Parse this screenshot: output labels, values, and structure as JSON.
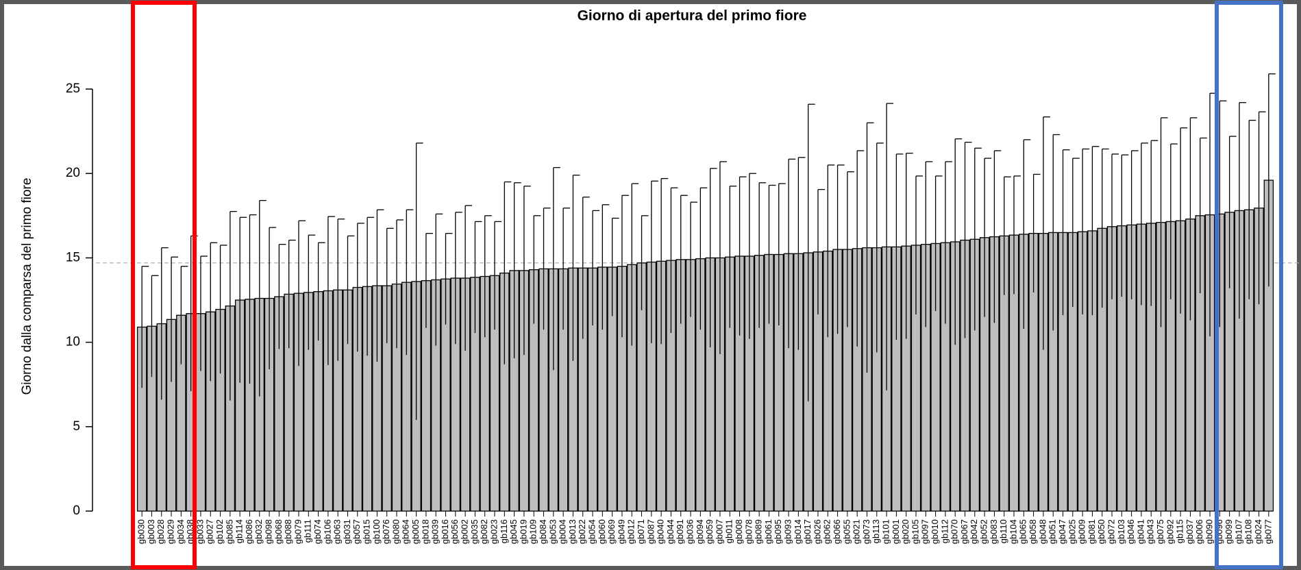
{
  "chart_data": {
    "type": "bar",
    "title": "Giorno di apertura del primo fiore",
    "y_label": "Giorno dalla comparsa del primo fiore",
    "categories": [
      "gb030",
      "gb003",
      "gb028",
      "gb029",
      "gb034",
      "gb038",
      "gb033",
      "gb027",
      "gb102",
      "gb085",
      "gb114",
      "gb086",
      "gb032",
      "gb098",
      "gb068",
      "gb088",
      "gb079",
      "gb111",
      "gb074",
      "gb106",
      "gb063",
      "gb031",
      "gb057",
      "gb015",
      "gb100",
      "gb076",
      "gb080",
      "gb064",
      "gb005",
      "gb018",
      "gb039",
      "gb016",
      "gb056",
      "gb002",
      "gb035",
      "gb082",
      "gb023",
      "gb116",
      "gb045",
      "gb019",
      "gb109",
      "gb084",
      "gb053",
      "gb004",
      "gb013",
      "gb022",
      "gb054",
      "gb060",
      "gb069",
      "gb049",
      "gb012",
      "gb071",
      "gb087",
      "gb040",
      "gb044",
      "gb091",
      "gb036",
      "gb094",
      "gb059",
      "gb007",
      "gb011",
      "gb008",
      "gb078",
      "gb089",
      "gb061",
      "gb095",
      "gb093",
      "gb014",
      "gb017",
      "gb026",
      "gb062",
      "gb066",
      "gb055",
      "gb021",
      "gb073",
      "gb113",
      "gb101",
      "gb001",
      "gb020",
      "gb105",
      "gb097",
      "gb010",
      "gb112",
      "gb070",
      "gb067",
      "gb042",
      "gb052",
      "gb083",
      "gb110",
      "gb104",
      "gb065",
      "gb058",
      "gb048",
      "gb051",
      "gb047",
      "gb025",
      "gb009",
      "gb081",
      "gb050",
      "gb072",
      "gb103",
      "gb046",
      "gb041",
      "gb043",
      "gb075",
      "gb092",
      "gb115",
      "gb037",
      "gb006",
      "gb090",
      "gb096",
      "gb099",
      "gb107",
      "gb108",
      "gb024",
      "gb077"
    ],
    "values": [
      10.9,
      10.95,
      11.1,
      11.35,
      11.6,
      11.7,
      11.7,
      11.8,
      11.95,
      12.15,
      12.5,
      12.55,
      12.6,
      12.6,
      12.7,
      12.85,
      12.9,
      12.95,
      13.0,
      13.05,
      13.1,
      13.1,
      13.25,
      13.3,
      13.35,
      13.35,
      13.45,
      13.55,
      13.6,
      13.65,
      13.7,
      13.75,
      13.8,
      13.8,
      13.85,
      13.9,
      13.95,
      14.1,
      14.25,
      14.25,
      14.3,
      14.35,
      14.35,
      14.35,
      14.4,
      14.4,
      14.4,
      14.45,
      14.45,
      14.5,
      14.6,
      14.7,
      14.75,
      14.8,
      14.85,
      14.9,
      14.9,
      14.95,
      15.0,
      15.0,
      15.05,
      15.1,
      15.1,
      15.15,
      15.2,
      15.2,
      15.25,
      15.25,
      15.3,
      15.35,
      15.4,
      15.5,
      15.5,
      15.55,
      15.6,
      15.6,
      15.65,
      15.65,
      15.7,
      15.75,
      15.8,
      15.85,
      15.9,
      15.95,
      16.05,
      16.1,
      16.2,
      16.25,
      16.3,
      16.35,
      16.4,
      16.45,
      16.45,
      16.5,
      16.5,
      16.5,
      16.55,
      16.6,
      16.75,
      16.85,
      16.9,
      16.95,
      17.0,
      17.05,
      17.1,
      17.15,
      17.2,
      17.3,
      17.5,
      17.55,
      17.6,
      17.7,
      17.8,
      17.85,
      17.95,
      19.6
    ],
    "errors": [
      3.6,
      3.0,
      4.5,
      3.7,
      2.9,
      4.6,
      3.4,
      4.1,
      3.8,
      5.6,
      4.9,
      5.0,
      5.8,
      4.2,
      3.1,
      3.2,
      4.3,
      3.4,
      2.9,
      4.4,
      4.2,
      3.2,
      3.8,
      4.1,
      4.5,
      3.4,
      3.8,
      4.3,
      8.2,
      2.8,
      3.9,
      2.7,
      3.9,
      4.3,
      3.3,
      3.6,
      3.2,
      5.4,
      5.2,
      5.0,
      3.2,
      3.6,
      6.0,
      3.6,
      5.5,
      4.2,
      3.4,
      3.7,
      2.9,
      4.2,
      4.8,
      2.8,
      4.8,
      4.9,
      4.3,
      3.8,
      3.4,
      4.2,
      5.3,
      5.7,
      4.2,
      4.7,
      4.9,
      4.3,
      4.1,
      4.2,
      5.6,
      5.7,
      8.8,
      3.7,
      5.1,
      5.0,
      4.6,
      5.8,
      7.4,
      6.2,
      8.5,
      5.5,
      5.5,
      4.1,
      4.9,
      4.0,
      4.8,
      6.1,
      5.8,
      5.4,
      4.7,
      5.1,
      3.5,
      3.5,
      5.6,
      3.5,
      6.9,
      5.8,
      4.9,
      4.4,
      4.9,
      5.0,
      4.7,
      4.3,
      4.2,
      4.4,
      4.8,
      4.9,
      6.2,
      4.6,
      5.5,
      6.0,
      4.6,
      7.2,
      6.7,
      4.5,
      6.4,
      5.3,
      5.7,
      6.3
    ],
    "color": "#bebebe",
    "reference_line": 14.7,
    "ylim": [
      0,
      28
    ],
    "yticks": [
      0,
      5,
      10,
      15,
      20,
      25
    ]
  }
}
